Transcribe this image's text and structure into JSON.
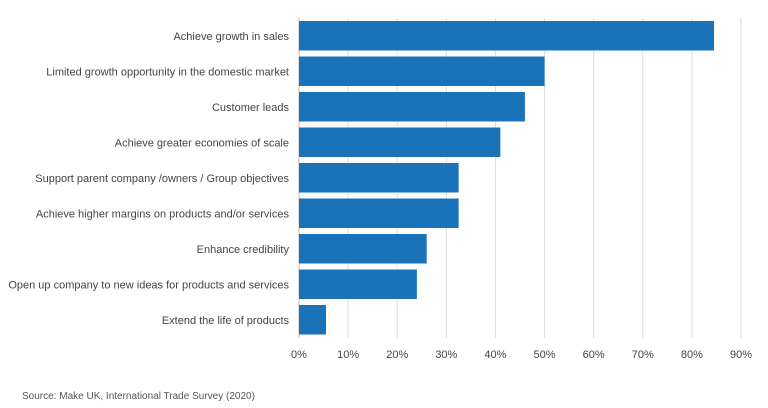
{
  "chart_data": {
    "type": "bar",
    "orientation": "horizontal",
    "categories": [
      "Achieve growth in sales",
      "Limited growth opportunity in the domestic market",
      "Customer leads",
      "Achieve greater economies of scale",
      "Support  parent company /owners / Group objectives",
      "Achieve higher margins on products and/or services",
      "Enhance credibility",
      "Open up company to new ideas for products and services",
      "Extend the life of products"
    ],
    "values": [
      84.5,
      50,
      46,
      41,
      32.5,
      32.5,
      26,
      24,
      5.5
    ],
    "xlim": [
      0,
      90
    ],
    "xticks": [
      0,
      10,
      20,
      30,
      40,
      50,
      60,
      70,
      80,
      90
    ],
    "xtick_labels": [
      "0%",
      "10%",
      "20%",
      "30%",
      "40%",
      "50%",
      "60%",
      "70%",
      "80%",
      "90%"
    ],
    "bar_color": "#1a73b8",
    "grid": "vertical"
  },
  "source_text": "Source: Make UK, International Trade Survey (2020)"
}
